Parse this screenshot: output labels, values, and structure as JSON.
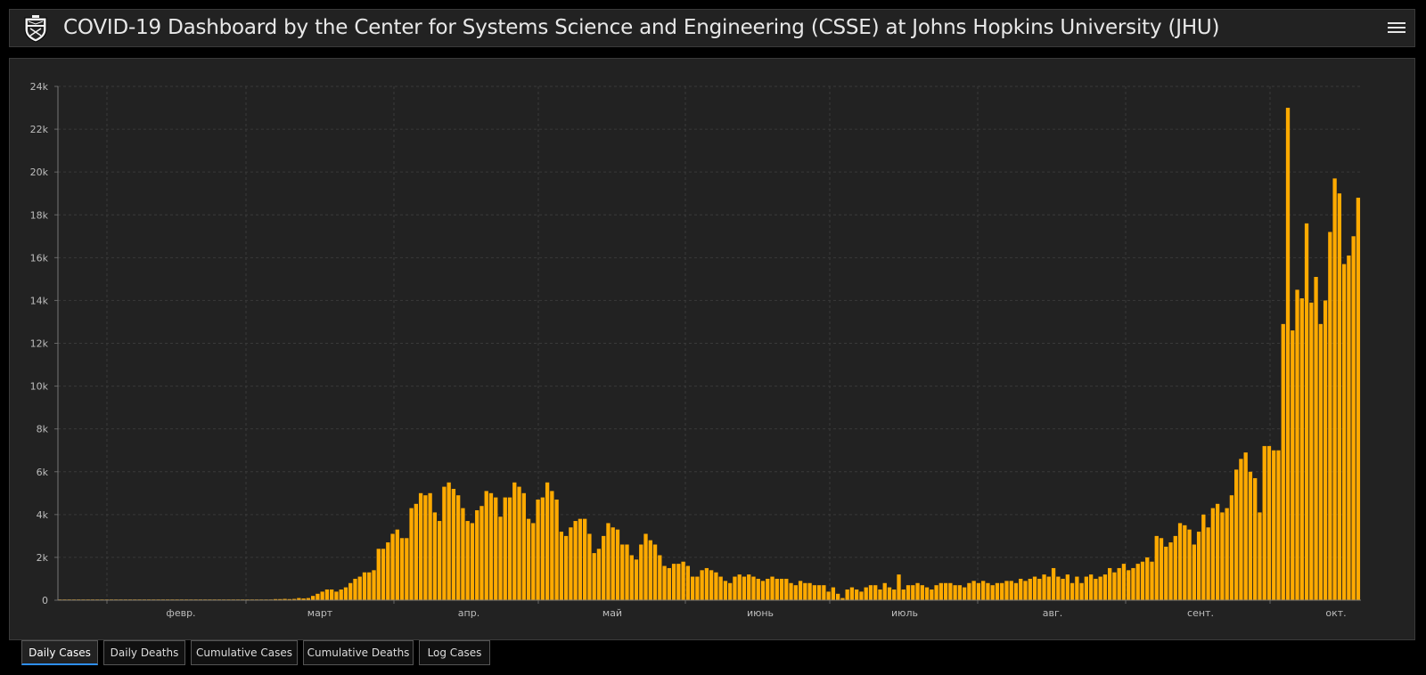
{
  "header": {
    "title": "COVID-19 Dashboard by the Center for Systems Science and Engineering (CSSE) at Johns Hopkins University (JHU)",
    "logo_icon": "jhu-shield-icon",
    "menu_icon": "hamburger-menu-icon"
  },
  "tabs": [
    {
      "label": "Daily Cases",
      "active": true
    },
    {
      "label": "Daily Deaths",
      "active": false
    },
    {
      "label": "Cumulative Cases",
      "active": false
    },
    {
      "label": "Cumulative Deaths",
      "active": false
    },
    {
      "label": "Log Cases",
      "active": false
    }
  ],
  "colors": {
    "bar": "#ffaa00",
    "background": "#222222",
    "grid": "#3a3a3a",
    "active_tab": "#2e8ef0"
  },
  "chart_data": {
    "type": "bar",
    "title": "",
    "xlabel": "",
    "ylabel": "",
    "ylim": [
      0,
      24000
    ],
    "yticks": [
      "0",
      "2k",
      "4k",
      "6k",
      "8k",
      "10k",
      "12k",
      "14k",
      "16k",
      "18k",
      "20k",
      "22k",
      "24k"
    ],
    "xticks": [
      "февр.",
      "март",
      "апр.",
      "май",
      "июнь",
      "июль",
      "авг.",
      "сент.",
      "окт."
    ],
    "grid": true,
    "values": [
      0,
      0,
      0,
      0,
      0,
      0,
      0,
      0,
      0,
      0,
      0,
      0,
      0,
      0,
      0,
      0,
      0,
      0,
      0,
      0,
      0,
      0,
      0,
      0,
      0,
      0,
      0,
      0,
      0,
      0,
      0,
      0,
      0,
      0,
      0,
      0,
      0,
      0,
      0,
      0,
      0,
      0,
      0,
      0,
      0,
      0,
      50,
      50,
      60,
      50,
      60,
      100,
      80,
      100,
      200,
      300,
      400,
      500,
      500,
      400,
      500,
      600,
      800,
      1000,
      1100,
      1300,
      1300,
      1400,
      2400,
      2400,
      2700,
      3100,
      3300,
      2900,
      2900,
      4300,
      4500,
      5000,
      4900,
      5000,
      4100,
      3700,
      5300,
      5500,
      5200,
      4900,
      4300,
      3700,
      3600,
      4200,
      4400,
      5100,
      5000,
      4800,
      3900,
      4800,
      4800,
      5500,
      5300,
      5000,
      3800,
      3600,
      4700,
      4800,
      5500,
      5100,
      4700,
      3200,
      3000,
      3400,
      3700,
      3800,
      3800,
      3100,
      2200,
      2400,
      3000,
      3600,
      3400,
      3300,
      2600,
      2600,
      2100,
      1900,
      2600,
      3100,
      2800,
      2600,
      2100,
      1600,
      1500,
      1700,
      1700,
      1800,
      1600,
      1100,
      1100,
      1400,
      1500,
      1400,
      1300,
      1100,
      900,
      800,
      1100,
      1200,
      1100,
      1200,
      1100,
      1000,
      900,
      1000,
      1100,
      1000,
      1000,
      1000,
      800,
      700,
      900,
      800,
      800,
      700,
      700,
      700,
      400,
      600,
      300,
      100,
      500,
      600,
      500,
      400,
      600,
      700,
      700,
      500,
      800,
      600,
      500,
      1200,
      500,
      700,
      700,
      800,
      700,
      600,
      500,
      700,
      800,
      800,
      800,
      700,
      700,
      600,
      800,
      900,
      800,
      900,
      800,
      700,
      800,
      800,
      900,
      900,
      800,
      1000,
      900,
      1000,
      1100,
      1000,
      1200,
      1100,
      1500,
      1100,
      1000,
      1200,
      800,
      1100,
      800,
      1100,
      1200,
      1000,
      1100,
      1200,
      1500,
      1300,
      1500,
      1700,
      1400,
      1500,
      1700,
      1800,
      2000,
      1800,
      3000,
      2900,
      2500,
      2700,
      3000,
      3600,
      3500,
      3300,
      2600,
      3200,
      4000,
      3400,
      4300,
      4500,
      4100,
      4300,
      4900,
      6100,
      6600,
      6900,
      6000,
      5700,
      4100,
      7200,
      7200,
      7000,
      7000,
      12900,
      23000,
      12600,
      14500,
      14100,
      17600,
      13900,
      15100,
      12900,
      14000,
      17200,
      19700,
      19000,
      15700,
      16100,
      17000,
      18800
    ]
  }
}
